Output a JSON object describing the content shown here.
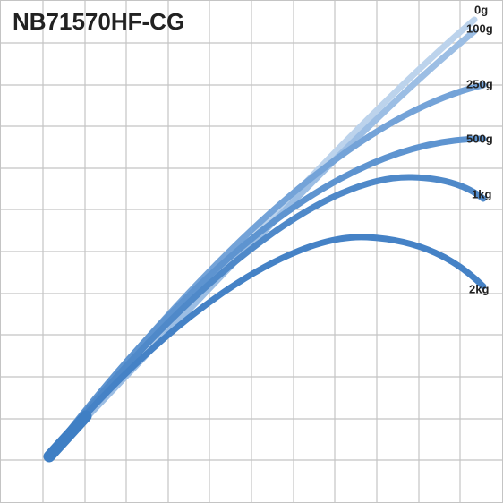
{
  "header": {
    "title": "NB71570HF-CG"
  },
  "curves": [
    {
      "label": "0g"
    },
    {
      "label": "100g"
    },
    {
      "label": "250g"
    },
    {
      "label": "500g"
    },
    {
      "label": "1kg"
    },
    {
      "label": "2kg"
    }
  ]
}
